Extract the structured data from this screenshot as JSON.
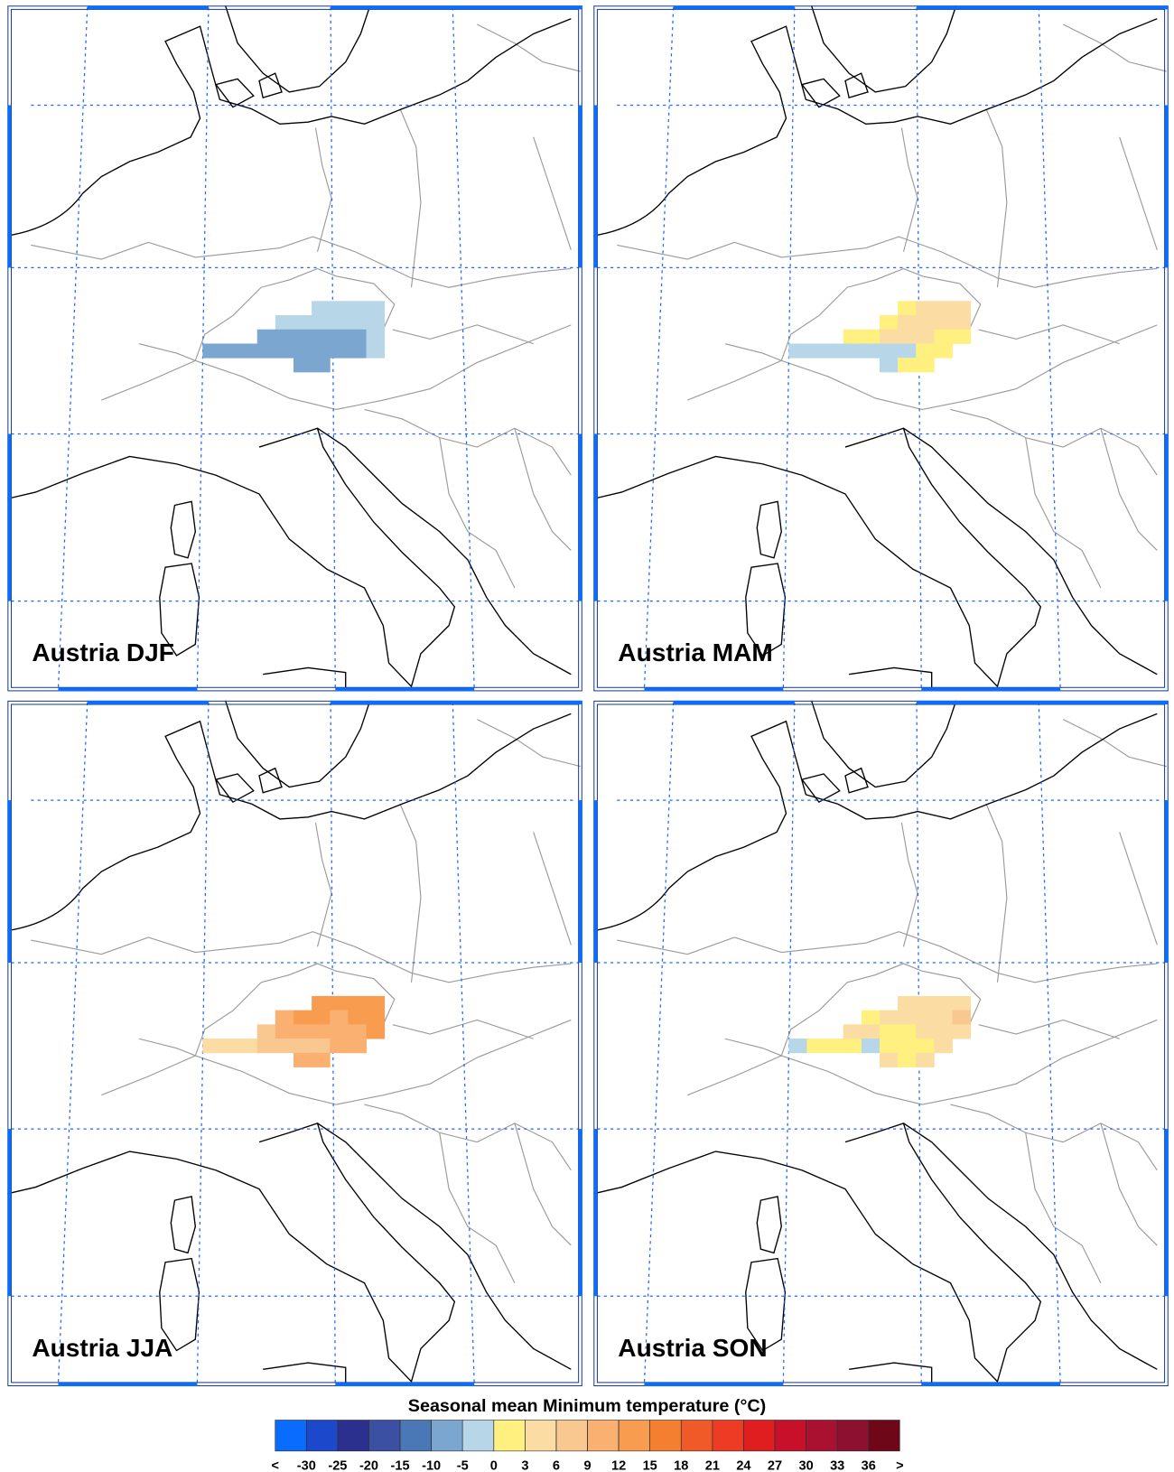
{
  "panels": [
    {
      "title": "Austria DJF",
      "lon": [
        14.3,
        15.1,
        15.9,
        16.7,
        12.7,
        13.5,
        14.3,
        15.1,
        15.9,
        16.7,
        11.9,
        12.7,
        13.5,
        14.3,
        15.1,
        15.9,
        16.7,
        9.5,
        10.3,
        11.1,
        11.9,
        12.7,
        13.5,
        14.3,
        15.1,
        15.9,
        16.7,
        13.5,
        14.3
      ],
      "lat": [
        48.2,
        48.2,
        48.2,
        48.2,
        47.75,
        47.75,
        47.75,
        47.75,
        47.75,
        47.75,
        47.3,
        47.3,
        47.3,
        47.3,
        47.3,
        47.3,
        47.3,
        46.85,
        46.85,
        46.85,
        46.85,
        46.85,
        46.85,
        46.85,
        46.85,
        46.85,
        46.85,
        46.4,
        46.4
      ],
      "values": [
        -2,
        -2,
        -2,
        -2,
        -2,
        -2,
        -2,
        -2,
        -2,
        -2,
        -7,
        -7,
        -7,
        -7,
        -7,
        -7,
        -2,
        -7,
        -7,
        -7,
        -7,
        -7,
        -7,
        -7,
        -7,
        -7,
        -2,
        -7,
        -7
      ]
    },
    {
      "title": "Austria MAM",
      "lon": [
        14.3,
        15.1,
        15.9,
        16.7,
        13.5,
        14.3,
        15.1,
        15.9,
        16.7,
        11.9,
        12.7,
        13.5,
        14.3,
        15.1,
        15.9,
        16.7,
        9.5,
        10.3,
        11.1,
        11.9,
        12.7,
        13.5,
        14.3,
        15.1,
        15.9,
        13.5,
        14.3,
        15.1
      ],
      "lat": [
        48.2,
        48.2,
        48.2,
        48.2,
        47.75,
        47.75,
        47.75,
        47.75,
        47.75,
        47.3,
        47.3,
        47.3,
        47.3,
        47.3,
        47.3,
        47.3,
        46.85,
        46.85,
        46.85,
        46.85,
        46.85,
        46.85,
        46.85,
        46.85,
        46.85,
        46.4,
        46.4,
        46.4
      ],
      "values": [
        1,
        4,
        4,
        4,
        1,
        4,
        4,
        4,
        4,
        1,
        1,
        4,
        4,
        4,
        1,
        1,
        -2,
        -2,
        -2,
        -2,
        -2,
        -2,
        -2,
        1,
        1,
        -2,
        1,
        1
      ]
    },
    {
      "title": "Austria JJA",
      "lon": [
        14.3,
        15.1,
        15.9,
        16.7,
        12.7,
        13.5,
        14.3,
        15.1,
        15.9,
        16.7,
        11.9,
        12.7,
        13.5,
        14.3,
        15.1,
        15.9,
        16.7,
        9.5,
        10.3,
        11.1,
        11.9,
        12.7,
        13.5,
        14.3,
        15.1,
        15.9,
        13.5,
        14.3
      ],
      "lat": [
        48.2,
        48.2,
        48.2,
        48.2,
        47.75,
        47.75,
        47.75,
        47.75,
        47.75,
        47.75,
        47.3,
        47.3,
        47.3,
        47.3,
        47.3,
        47.3,
        47.3,
        46.85,
        46.85,
        46.85,
        46.85,
        46.85,
        46.85,
        46.85,
        46.85,
        46.85,
        46.4,
        46.4
      ],
      "values": [
        12,
        13,
        14,
        14,
        10,
        12,
        14,
        11,
        14,
        14,
        8,
        11,
        11,
        11,
        11,
        11,
        13,
        4,
        5,
        5,
        6,
        8,
        7,
        7,
        10,
        11,
        10,
        10
      ]
    },
    {
      "title": "Austria SON",
      "lon": [
        14.3,
        15.1,
        15.9,
        16.7,
        12.7,
        13.5,
        14.3,
        15.1,
        15.9,
        16.7,
        11.9,
        12.7,
        13.5,
        14.3,
        15.1,
        15.9,
        16.7,
        9.5,
        10.3,
        11.1,
        11.9,
        12.7,
        13.5,
        14.3,
        15.1,
        15.9,
        13.5,
        14.3,
        15.1
      ],
      "lat": [
        48.2,
        48.2,
        48.2,
        48.2,
        47.75,
        47.75,
        47.75,
        47.75,
        47.75,
        47.75,
        47.3,
        47.3,
        47.3,
        47.3,
        47.3,
        47.3,
        47.3,
        46.85,
        46.85,
        46.85,
        46.85,
        46.85,
        46.85,
        46.85,
        46.85,
        46.85,
        46.4,
        46.4,
        46.4
      ],
      "values": [
        4,
        4,
        4,
        4,
        2,
        4,
        4,
        4,
        4,
        6,
        4,
        4,
        2,
        2,
        4,
        4,
        4,
        -2,
        1,
        1,
        2,
        -2,
        1,
        2,
        2,
        4,
        4,
        2,
        4
      ]
    }
  ],
  "colorbar": {
    "title": "Seasonal mean Minimum temperature (°C)",
    "under_label": "<",
    "over_label": ">",
    "levels": [
      -30,
      -25,
      -20,
      -15,
      -10,
      -5,
      0,
      3,
      6,
      9,
      12,
      15,
      18,
      21,
      24,
      27,
      30,
      33,
      36
    ],
    "colors": [
      "#0a6cff",
      "#1c48cc",
      "#2b2f8e",
      "#3b50a2",
      "#4a78b7",
      "#7aa6d0",
      "#b7d6e8",
      "#fff080",
      "#fbdca2",
      "#f9c890",
      "#f9b070",
      "#f89c50",
      "#f47f30",
      "#f05a28",
      "#ee3b24",
      "#e01e20",
      "#c8102a",
      "#aa1030",
      "#8e1030",
      "#6e0818"
    ]
  }
}
